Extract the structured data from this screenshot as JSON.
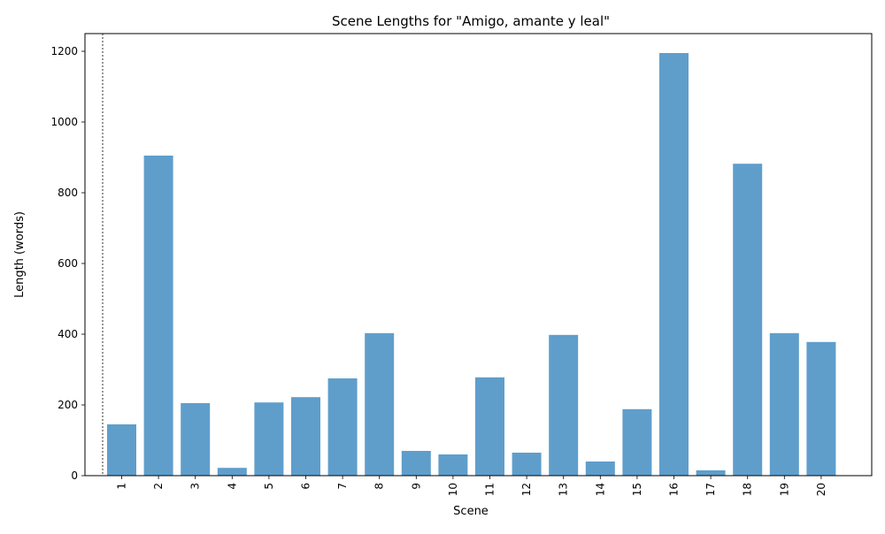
{
  "chart_data": {
    "type": "bar",
    "title": "Scene Lengths for \"Amigo, amante y leal\"",
    "xlabel": "Scene",
    "ylabel": "Length (words)",
    "categories": [
      "1",
      "2",
      "3",
      "4",
      "5",
      "6",
      "7",
      "8",
      "9",
      "10",
      "11",
      "12",
      "13",
      "14",
      "15",
      "16",
      "17",
      "18",
      "19",
      "20"
    ],
    "values": [
      145,
      905,
      205,
      22,
      207,
      222,
      275,
      403,
      70,
      60,
      278,
      65,
      398,
      40,
      188,
      1195,
      15,
      882,
      403,
      378
    ],
    "ylim": [
      0,
      1250
    ],
    "yticks": [
      0,
      200,
      400,
      600,
      800,
      1000,
      1200
    ],
    "bar_color": "#5f9ecb",
    "grid": false,
    "legend": "none",
    "reference_line": "dotted vertical line left of scene 1"
  }
}
